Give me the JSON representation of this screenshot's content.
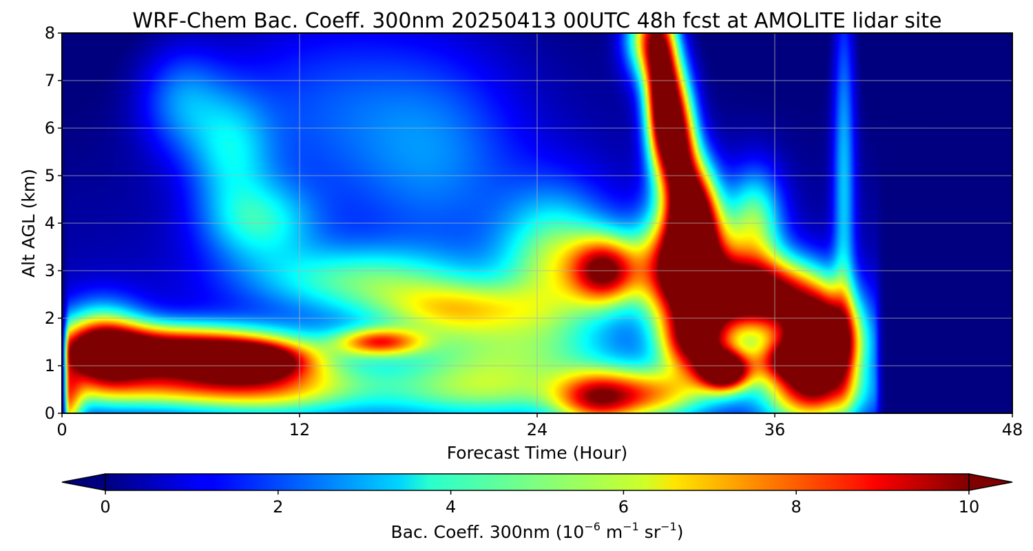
{
  "chart_data": {
    "type": "heatmap",
    "title": "WRF-Chem Bac. Coeff. 300nm  20250413 00UTC 48h fcst at AMOLITE lidar site",
    "xlabel": "Forecast Time (Hour)",
    "ylabel": "Alt AGL (km)",
    "xlim": [
      0,
      48
    ],
    "ylim": [
      0,
      8
    ],
    "xticks": [
      "0",
      "12",
      "24",
      "36",
      "48"
    ],
    "yticks": [
      "0",
      "1",
      "2",
      "3",
      "4",
      "5",
      "6",
      "7",
      "8"
    ],
    "grid": true,
    "colormap": "jet",
    "colorbar": {
      "label_main": "Bac. Coeff. 300nm  (10",
      "label_exp1": "−6",
      "label_mid": " m",
      "label_exp2": "−1",
      "label_mid2": " sr",
      "label_exp3": "−1",
      "label_end": ")",
      "range": [
        0,
        10
      ],
      "ticks": [
        "0",
        "2",
        "4",
        "6",
        "8",
        "10"
      ],
      "extend": "both",
      "under_color": "#00007f",
      "over_color": "#7f0000"
    },
    "data_extent_hours": 41,
    "features": [
      {
        "t": 0.3,
        "z": 0.1,
        "v": 4.5,
        "st": 0.5,
        "sz": 0.5
      },
      {
        "t": 5.5,
        "z": 1.3,
        "v": 10.5,
        "st": 4.2,
        "sz": 0.38
      },
      {
        "t": 2.0,
        "z": 1.4,
        "v": 6.5,
        "st": 1.5,
        "sz": 0.6
      },
      {
        "t": 9.5,
        "z": 1.1,
        "v": 7.0,
        "st": 1.8,
        "sz": 0.25
      },
      {
        "t": 6.0,
        "z": 0.55,
        "v": 5.0,
        "st": 5.0,
        "sz": 0.35
      },
      {
        "t": 11.0,
        "z": 0.6,
        "v": 3.0,
        "st": 3.0,
        "sz": 0.5
      },
      {
        "t": 16.0,
        "z": 1.5,
        "v": 5.5,
        "st": 1.5,
        "sz": 0.2
      },
      {
        "t": 20.0,
        "z": 2.2,
        "v": 4.0,
        "st": 3.0,
        "sz": 0.4
      },
      {
        "t": 15.0,
        "z": 2.8,
        "v": 3.5,
        "st": 4.0,
        "sz": 0.5
      },
      {
        "t": 10.0,
        "z": 4.0,
        "v": 3.0,
        "st": 2.0,
        "sz": 0.6
      },
      {
        "t": 8.5,
        "z": 5.5,
        "v": 2.6,
        "st": 1.5,
        "sz": 0.9
      },
      {
        "t": 6.0,
        "z": 6.6,
        "v": 2.2,
        "st": 1.5,
        "sz": 0.8
      },
      {
        "t": 13.0,
        "z": 6.5,
        "v": 1.6,
        "st": 4.0,
        "sz": 1.5
      },
      {
        "t": 19.0,
        "z": 5.5,
        "v": 1.7,
        "st": 3.0,
        "sz": 1.5
      },
      {
        "t": 22.0,
        "z": 1.2,
        "v": 3.5,
        "st": 4.0,
        "sz": 0.6
      },
      {
        "t": 21.0,
        "z": 0.4,
        "v": 2.5,
        "st": 4.0,
        "sz": 0.4
      },
      {
        "t": 25.0,
        "z": 3.2,
        "v": 4.5,
        "st": 2.0,
        "sz": 1.0
      },
      {
        "t": 27.5,
        "z": 3.0,
        "v": 7.5,
        "st": 1.2,
        "sz": 0.5
      },
      {
        "t": 27.0,
        "z": 0.3,
        "v": 6.0,
        "st": 1.5,
        "sz": 0.4
      },
      {
        "t": 30.0,
        "z": 0.4,
        "v": 5.0,
        "st": 2.0,
        "sz": 0.4
      },
      {
        "t": 31.5,
        "z": 3.1,
        "v": 11.5,
        "st": 1.5,
        "sz": 0.8
      },
      {
        "t": 35.0,
        "z": 2.5,
        "v": 10.5,
        "st": 2.2,
        "sz": 0.55
      },
      {
        "t": 38.5,
        "z": 1.5,
        "v": 11.0,
        "st": 1.3,
        "sz": 0.65
      },
      {
        "t": 33.5,
        "z": 0.9,
        "v": 10.5,
        "st": 0.9,
        "sz": 0.3
      },
      {
        "t": 32.0,
        "z": 1.5,
        "v": 8.5,
        "st": 1.2,
        "sz": 0.5
      },
      {
        "t": 36.5,
        "z": 1.1,
        "v": 5.0,
        "st": 1.2,
        "sz": 0.3
      },
      {
        "t": 32.0,
        "z": 4.2,
        "v": 9.0,
        "st": 0.8,
        "sz": 0.8
      },
      {
        "t": 31.3,
        "z": 5.5,
        "v": 7.0,
        "st": 0.6,
        "sz": 1.0
      },
      {
        "t": 30.2,
        "z": 7.0,
        "v": 7.5,
        "st": 0.6,
        "sz": 1.2
      },
      {
        "t": 30.6,
        "z": 6.2,
        "v": 6.5,
        "st": 0.6,
        "sz": 1.0
      },
      {
        "t": 29.5,
        "z": 7.9,
        "v": 5.5,
        "st": 0.8,
        "sz": 0.6
      },
      {
        "t": 35.0,
        "z": 4.0,
        "v": 4.5,
        "st": 1.0,
        "sz": 0.8
      },
      {
        "t": 37.5,
        "z": 1.0,
        "v": 4.0,
        "st": 1.5,
        "sz": 1.0
      },
      {
        "t": 39.5,
        "z": 5.0,
        "v": 3.0,
        "st": 0.4,
        "sz": 3.0
      },
      {
        "t": 38.0,
        "z": 0.4,
        "v": 3.5,
        "st": 2.0,
        "sz": 0.4
      }
    ]
  }
}
